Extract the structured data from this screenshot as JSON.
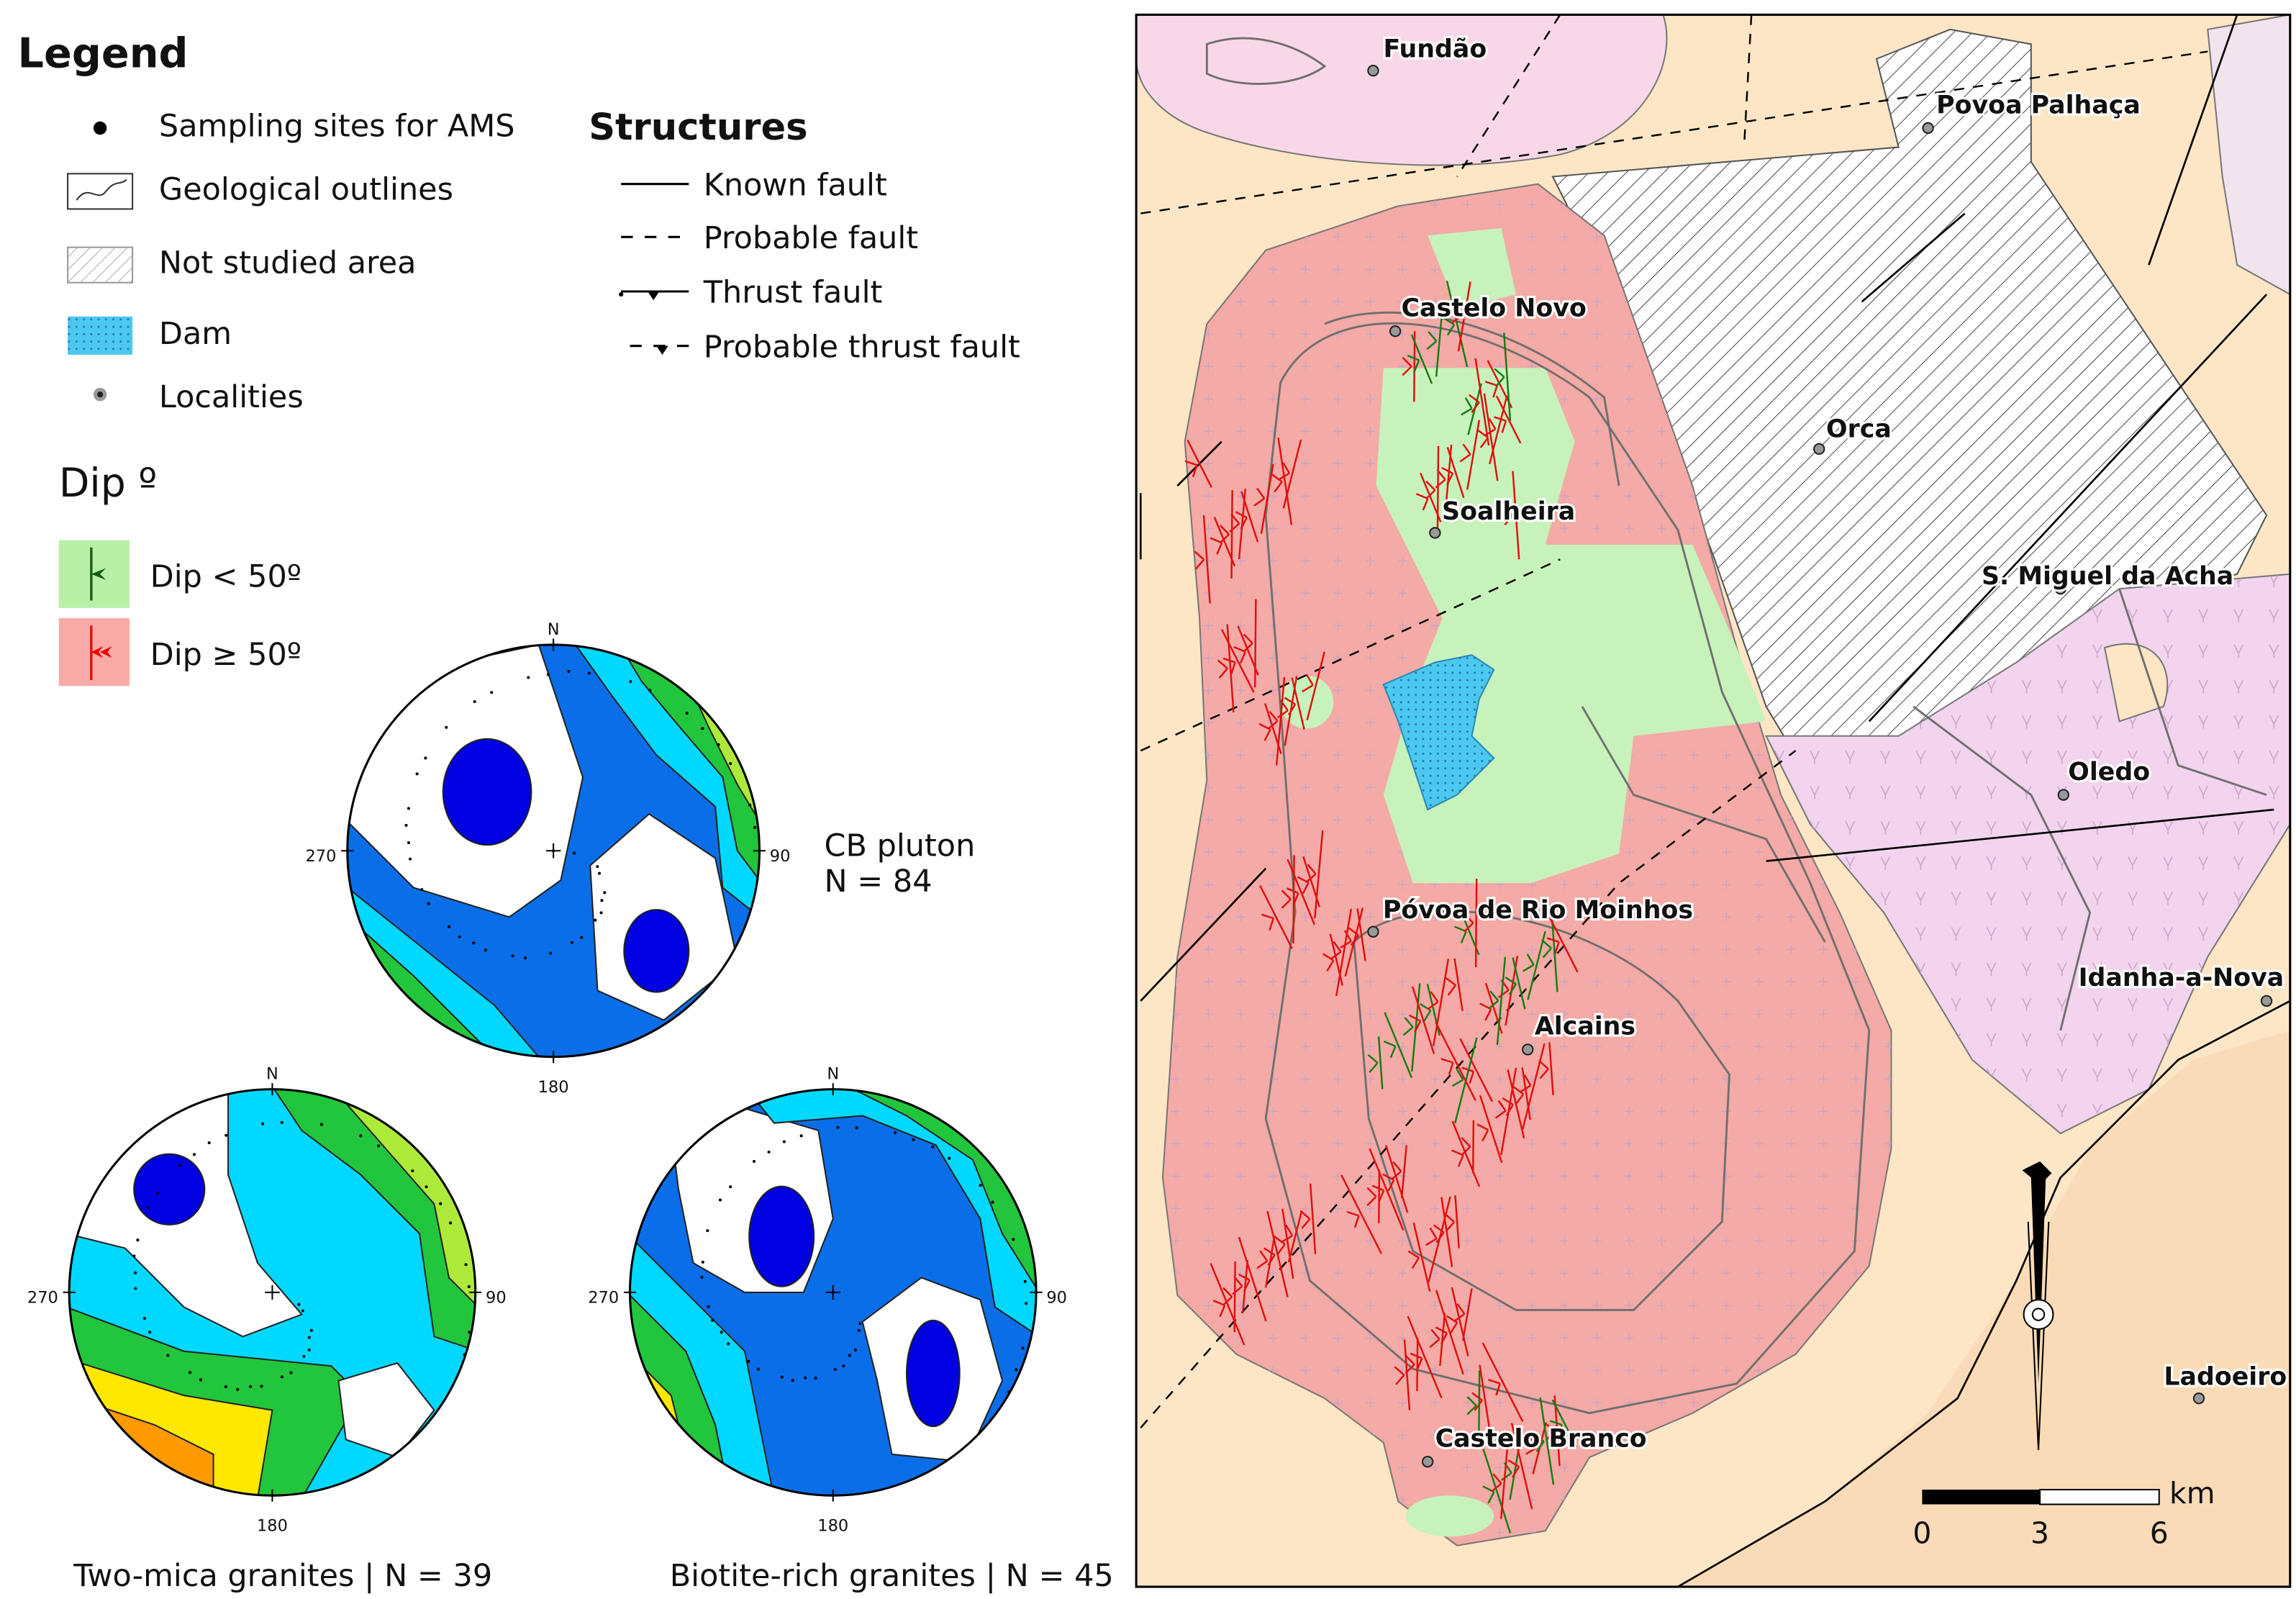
{
  "legend": {
    "title": "Legend",
    "items": [
      "Sampling sites for AMS",
      "Geological outlines",
      "Not studied area",
      "Dam",
      "Localities"
    ]
  },
  "structures": {
    "title": "Structures",
    "items": [
      "Known fault",
      "Probable fault",
      "Thrust fault",
      "Probable thrust fault"
    ]
  },
  "dip": {
    "title": "Dip º",
    "items": [
      "Dip < 50º",
      "Dip ≥ 50º"
    ]
  },
  "stereonets": [
    {
      "directions": [
        "N",
        "90",
        "180",
        "270"
      ],
      "caption": [
        "CB pluton",
        "N = 84"
      ]
    },
    {
      "directions": [
        "N",
        "90",
        "180",
        "270"
      ],
      "caption": [
        "Two-mica granites | N = 39"
      ]
    },
    {
      "directions": [
        "N",
        "90",
        "180",
        "270"
      ],
      "caption": [
        "Biotite-rich granites | N = 45"
      ]
    }
  ],
  "map": {
    "localities": [
      "Fundão",
      "Povoa Palhaça",
      "Castelo Novo",
      "Soalheira",
      "Orca",
      "S. Miguel da Acha",
      "Oledo",
      "Póvoa de Rio Moinhos",
      "Alcains",
      "Idanha-a-Nova",
      "Ladoeiro",
      "Castelo Branco"
    ],
    "scale": {
      "ticks": [
        "0",
        "3",
        "6"
      ],
      "unit": "km"
    }
  }
}
